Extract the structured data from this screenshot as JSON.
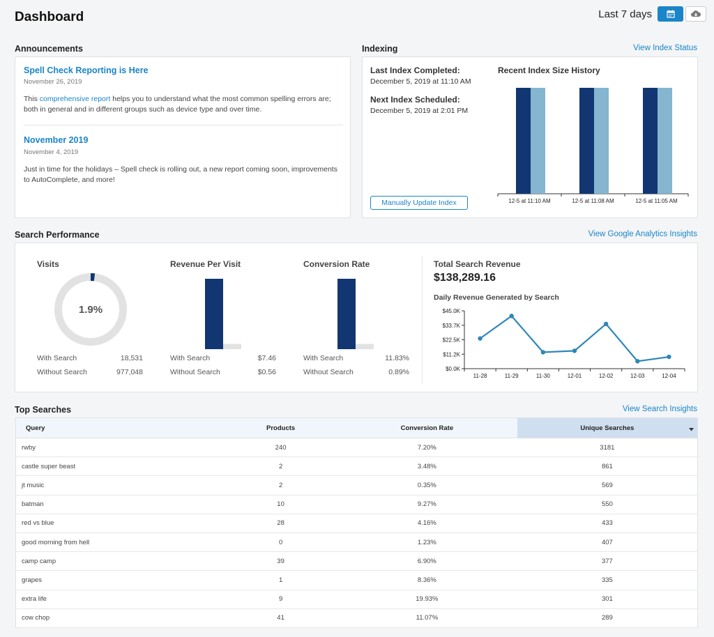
{
  "header": {
    "title": "Dashboard",
    "range_label": "Last 7 days",
    "calendar_icon": "calendar-icon",
    "cloud_icon": "cloud-download-icon"
  },
  "colors": {
    "accent": "#1a85c8",
    "navy": "#123672",
    "light_blue": "#85b5cf",
    "line": "#2e86b8"
  },
  "announcements": {
    "title": "Announcements",
    "items": [
      {
        "title": "Spell Check Reporting is Here",
        "date": "November 26, 2019",
        "body_pre": "This ",
        "body_link": "comprehensive report",
        "body_post": " helps you to understand what the most common spelling errors are; both in general and in different groups such as device type and over time."
      },
      {
        "title": "November 2019",
        "date": "November 4, 2019",
        "body": "Just in time for the holidays – Spell check is rolling out, a new report coming soon, improvements to AutoComplete, and more!"
      }
    ]
  },
  "indexing": {
    "title": "Indexing",
    "link": "View Index Status",
    "last_label": "Last Index Completed:",
    "last_value": "December 5, 2019 at 11:10 AM",
    "next_label": "Next Index Scheduled:",
    "next_value": "December 5, 2019 at 2:01 PM",
    "button": "Manually Update Index",
    "chart_title": "Recent Index Size History"
  },
  "search_performance": {
    "title": "Search Performance",
    "link": "View Google Analytics Insights",
    "visits": {
      "title": "Visits",
      "center": "1.9%",
      "share": 0.019,
      "with_label": "With Search",
      "with_value": "18,531",
      "without_label": "Without Search",
      "without_value": "977,048"
    },
    "rpv": {
      "title": "Revenue Per Visit",
      "with_label": "With Search",
      "with_value": "$7.46",
      "without_label": "Without Search",
      "without_value": "$0.56"
    },
    "conversion": {
      "title": "Conversion Rate",
      "with_label": "With Search",
      "with_value": "11.83%",
      "without_label": "Without Search",
      "without_value": "0.89%"
    },
    "total_label": "Total Search Revenue",
    "total_value": "$138,289.16",
    "daily_label": "Daily Revenue Generated by Search"
  },
  "chart_data": [
    {
      "type": "bar",
      "title": "Recent Index Size History",
      "categories": [
        "12-5 at 11:10 AM",
        "12-5 at 11:08 AM",
        "12-5 at 11:05 AM"
      ],
      "series": [
        {
          "values": [
            1,
            1,
            1
          ]
        },
        {
          "values": [
            1,
            1,
            1
          ]
        }
      ]
    },
    {
      "type": "bar",
      "title": "Revenue Per Visit",
      "categories": [
        "With Search",
        "Without Search"
      ],
      "values": [
        7.46,
        0.56
      ]
    },
    {
      "type": "bar",
      "title": "Conversion Rate",
      "categories": [
        "With Search",
        "Without Search"
      ],
      "values": [
        11.83,
        0.89
      ]
    },
    {
      "type": "line",
      "title": "Daily Revenue Generated by Search",
      "x": [
        "11-28",
        "11-29",
        "11-30",
        "12-01",
        "12-02",
        "12-03",
        "12-04"
      ],
      "values": [
        23500,
        41000,
        12800,
        13900,
        34800,
        5800,
        9200
      ],
      "yticks": [
        "$0.0K",
        "$11.2K",
        "$22.5K",
        "$33.7K",
        "$45.0K"
      ],
      "ylim": [
        0,
        45000
      ]
    }
  ],
  "top_searches": {
    "title": "Top Searches",
    "link": "View Search Insights",
    "columns": [
      "Query",
      "Products",
      "Conversion Rate",
      "Unique Searches"
    ],
    "sort_icon": "caret-down-icon",
    "rows": [
      [
        "rwby",
        "240",
        "7.20%",
        "3181"
      ],
      [
        "castle super beast",
        "2",
        "3.48%",
        "861"
      ],
      [
        "jt music",
        "2",
        "0.35%",
        "569"
      ],
      [
        "batman",
        "10",
        "9.27%",
        "550"
      ],
      [
        "red vs blue",
        "28",
        "4.16%",
        "433"
      ],
      [
        "good morning from hell",
        "0",
        "1.23%",
        "407"
      ],
      [
        "camp camp",
        "39",
        "6.90%",
        "377"
      ],
      [
        "grapes",
        "1",
        "8.36%",
        "335"
      ],
      [
        "extra life",
        "9",
        "19.93%",
        "301"
      ],
      [
        "cow chop",
        "41",
        "11.07%",
        "289"
      ]
    ]
  }
}
